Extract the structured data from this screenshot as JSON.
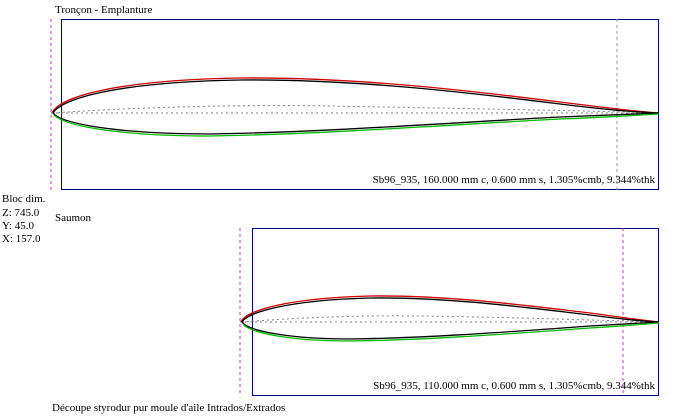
{
  "sections": {
    "root_title": "Tronçon - Emplanture",
    "tip_title": "Saumon",
    "footer": "Découpe styrodur pur moule d'aile Intrados/Extrados"
  },
  "bloc": {
    "title": "Bloc dim.",
    "z": "Z: 745.0",
    "y": "Y: 45.0",
    "x": "X: 157.0"
  },
  "profiles": {
    "root_info": "Sb96_935, 160.000 mm c, 0.600 mm s, 1.305%cmb, 9.344%thk",
    "tip_info": "Sb96_935, 110.000 mm c, 0.600 mm s, 1.305%cmb, 9.344%thk"
  },
  "colors": {
    "panel_border": "#000080",
    "extrados": "#cc0000",
    "intrados": "#00bb00",
    "profile": "#000000",
    "guide": "#cc33cc",
    "mean_line": "#808080"
  }
}
